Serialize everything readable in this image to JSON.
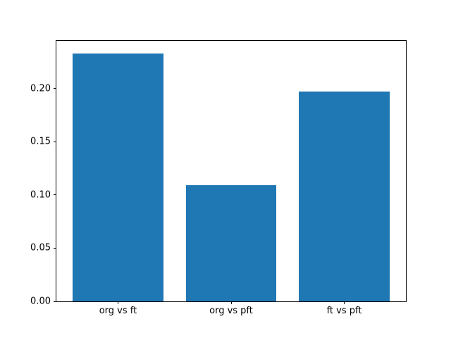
{
  "figure": {
    "background": "#ffffff"
  },
  "chart_data": {
    "type": "bar",
    "categories": [
      "org vs ft",
      "org vs pft",
      "ft vs pft"
    ],
    "values": [
      0.233,
      0.109,
      0.197
    ],
    "title": "",
    "xlabel": "",
    "ylabel": "",
    "ylim": [
      0,
      0.2447
    ],
    "xlim": [
      -0.545,
      2.545
    ],
    "bar_width": 0.8,
    "bar_color": "#1f77b4",
    "axis_color": "#000000",
    "yticks": {
      "values": [
        0.0,
        0.05,
        0.1,
        0.15,
        0.2
      ],
      "labels": [
        "0.00",
        "0.05",
        "0.10",
        "0.15",
        "0.20"
      ]
    },
    "grid": false,
    "legend": null
  }
}
